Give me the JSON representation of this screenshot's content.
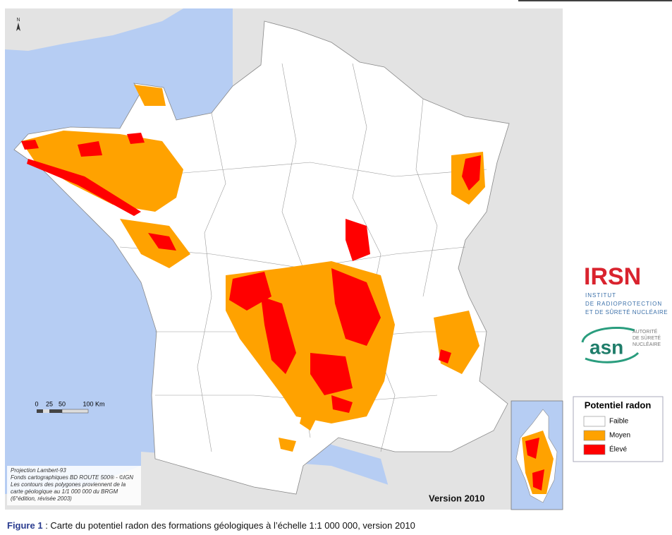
{
  "map": {
    "north_label": "N",
    "scale": {
      "labels": [
        "0",
        "25",
        "50",
        "100 Km"
      ]
    },
    "notes": [
      "Projection Lambert-93",
      "Fonds cartographiques BD ROUTE 500® - ©IGN",
      "Les contours des polygones proviennent de la",
      "carte géologique au 1/1 000 000 du BRGM",
      "(6°édition, révisée 2003)"
    ],
    "version": "Version 2010"
  },
  "legend": {
    "title": "Potentiel radon",
    "items": [
      {
        "label": "Faible",
        "color": "#ffffff"
      },
      {
        "label": "Moyen",
        "color": "#ffa200"
      },
      {
        "label": "Élevé",
        "color": "#ff0000"
      }
    ]
  },
  "logos": {
    "irsn": {
      "name": "IRSN",
      "lines": [
        "INSTITUT",
        "DE RADIOPROTECTION",
        "ET DE SÛRETÉ NUCLÉAIRE"
      ]
    },
    "asn": {
      "name": "asn",
      "lines": [
        "AUTORITÉ",
        "DE SÛRETÉ",
        "NUCLÉAIRE"
      ]
    }
  },
  "caption": {
    "label": "Figure 1",
    "text": " : Carte du potentiel radon des formations géologiques à l’échelle 1:1 000 000, version 2010"
  }
}
